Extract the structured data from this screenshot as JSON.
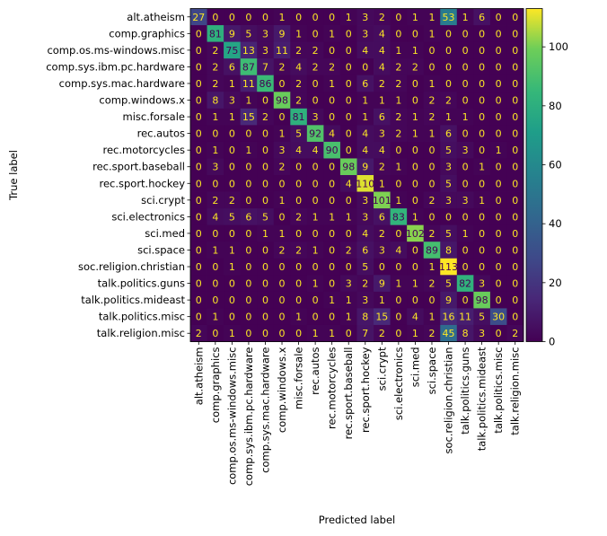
{
  "chart_data": {
    "type": "heatmap",
    "xlabel": "Predicted label",
    "ylabel": "True label",
    "labels": [
      "alt.atheism",
      "comp.graphics",
      "comp.os.ms-windows.misc",
      "comp.sys.ibm.pc.hardware",
      "comp.sys.mac.hardware",
      "comp.windows.x",
      "misc.forsale",
      "rec.autos",
      "rec.motorcycles",
      "rec.sport.baseball",
      "rec.sport.hockey",
      "sci.crypt",
      "sci.electronics",
      "sci.med",
      "sci.space",
      "soc.religion.christian",
      "talk.politics.guns",
      "talk.politics.mideast",
      "talk.politics.misc",
      "talk.religion.misc"
    ],
    "matrix": [
      [
        27,
        0,
        0,
        0,
        0,
        1,
        0,
        0,
        0,
        1,
        3,
        2,
        0,
        1,
        1,
        53,
        1,
        6,
        0,
        0
      ],
      [
        0,
        81,
        9,
        5,
        3,
        9,
        1,
        0,
        1,
        0,
        3,
        4,
        0,
        0,
        1,
        0,
        0,
        0,
        0,
        0
      ],
      [
        0,
        2,
        75,
        13,
        3,
        11,
        2,
        2,
        0,
        0,
        4,
        4,
        1,
        1,
        0,
        0,
        0,
        0,
        0,
        0
      ],
      [
        0,
        2,
        6,
        87,
        7,
        2,
        4,
        2,
        2,
        0,
        0,
        4,
        2,
        2,
        0,
        0,
        0,
        0,
        0,
        0
      ],
      [
        0,
        2,
        1,
        11,
        86,
        0,
        2,
        0,
        1,
        0,
        6,
        2,
        2,
        0,
        1,
        0,
        0,
        0,
        0,
        0
      ],
      [
        0,
        8,
        3,
        1,
        0,
        98,
        2,
        0,
        0,
        0,
        1,
        1,
        1,
        0,
        2,
        2,
        0,
        0,
        0,
        0
      ],
      [
        0,
        1,
        1,
        15,
        2,
        0,
        81,
        3,
        0,
        0,
        1,
        6,
        2,
        1,
        2,
        1,
        1,
        0,
        0,
        0
      ],
      [
        0,
        0,
        0,
        0,
        0,
        1,
        5,
        92,
        4,
        0,
        4,
        3,
        2,
        1,
        1,
        6,
        0,
        0,
        0,
        0
      ],
      [
        0,
        1,
        0,
        1,
        0,
        3,
        4,
        4,
        90,
        0,
        4,
        4,
        0,
        0,
        0,
        5,
        3,
        0,
        1,
        0
      ],
      [
        0,
        3,
        0,
        0,
        0,
        2,
        0,
        0,
        0,
        98,
        9,
        2,
        1,
        0,
        0,
        3,
        0,
        1,
        0,
        0
      ],
      [
        0,
        0,
        0,
        0,
        0,
        0,
        0,
        0,
        0,
        4,
        110,
        1,
        0,
        0,
        0,
        5,
        0,
        0,
        0,
        0
      ],
      [
        0,
        2,
        2,
        0,
        0,
        1,
        0,
        0,
        0,
        0,
        3,
        101,
        1,
        0,
        2,
        3,
        3,
        1,
        0,
        0
      ],
      [
        0,
        4,
        5,
        6,
        5,
        0,
        2,
        1,
        1,
        1,
        3,
        6,
        83,
        1,
        0,
        0,
        0,
        0,
        0,
        0
      ],
      [
        0,
        0,
        0,
        0,
        1,
        1,
        0,
        0,
        0,
        0,
        4,
        2,
        0,
        102,
        2,
        5,
        1,
        0,
        0,
        0
      ],
      [
        0,
        1,
        1,
        0,
        0,
        2,
        2,
        1,
        0,
        2,
        6,
        3,
        4,
        0,
        89,
        8,
        0,
        0,
        0,
        0
      ],
      [
        0,
        0,
        1,
        0,
        0,
        0,
        0,
        0,
        0,
        0,
        5,
        0,
        0,
        0,
        1,
        113,
        0,
        0,
        0,
        0
      ],
      [
        0,
        0,
        0,
        0,
        0,
        0,
        0,
        1,
        0,
        3,
        2,
        9,
        1,
        1,
        2,
        5,
        82,
        3,
        0,
        0
      ],
      [
        0,
        0,
        0,
        0,
        0,
        0,
        0,
        0,
        1,
        1,
        3,
        1,
        0,
        0,
        0,
        9,
        0,
        98,
        0,
        0
      ],
      [
        0,
        1,
        0,
        0,
        0,
        0,
        1,
        0,
        0,
        1,
        8,
        15,
        0,
        4,
        1,
        16,
        11,
        5,
        30,
        0
      ],
      [
        2,
        0,
        1,
        0,
        0,
        0,
        0,
        1,
        1,
        0,
        7,
        2,
        0,
        1,
        2,
        45,
        8,
        3,
        0,
        2
      ]
    ],
    "colorbar": {
      "min": 0,
      "max": 113,
      "ticks": [
        0,
        20,
        40,
        60,
        80,
        100
      ],
      "colormap": "viridis"
    },
    "grid": false
  }
}
